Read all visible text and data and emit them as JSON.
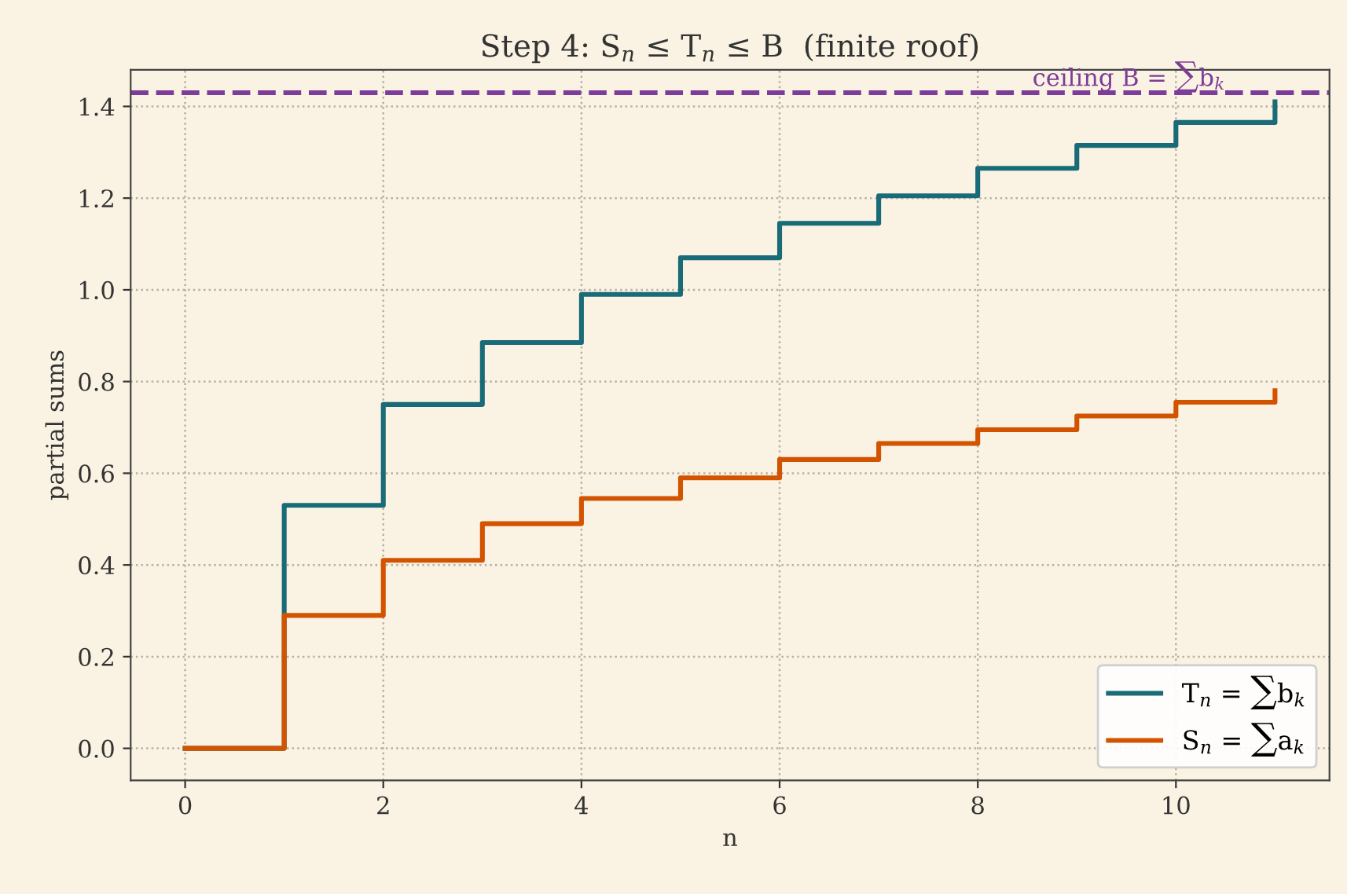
{
  "chart_data": {
    "type": "step",
    "title": "Step 4: S$_{n}$ ≤ T$_{n}$ ≤ B  (finite roof)",
    "xlabel": "n",
    "ylabel": "partial sums",
    "x": [
      0,
      1,
      2,
      3,
      4,
      5,
      6,
      7,
      8,
      9,
      10,
      11
    ],
    "series": [
      {
        "name": "T$_{n}$ = ∑b$_{k}$",
        "color": "#1a6b78",
        "values": [
          0,
          0.53,
          0.75,
          0.885,
          0.99,
          1.07,
          1.145,
          1.205,
          1.265,
          1.315,
          1.365,
          1.41
        ]
      },
      {
        "name": "S$_{n}$ = ∑a$_{k}$",
        "color": "#d35400",
        "values": [
          0,
          0.29,
          0.41,
          0.49,
          0.545,
          0.59,
          0.63,
          0.665,
          0.695,
          0.725,
          0.755,
          0.78
        ]
      }
    ],
    "ref_lines": [
      {
        "axis": "y",
        "value": 1.43,
        "label": "ceiling B = ∑b$_{k}$",
        "color": "#7d3c98",
        "line_style": "dashed"
      }
    ],
    "xlim": [
      -0.55,
      11.55
    ],
    "xticks": [
      0,
      2,
      4,
      6,
      8,
      10
    ],
    "ylim": [
      -0.07,
      1.48
    ],
    "yticks": [
      {
        "value": 0,
        "label": "0.0"
      },
      {
        "value": 0.2,
        "label": "0.2"
      },
      {
        "value": 0.4,
        "label": "0.4"
      },
      {
        "value": 0.6,
        "label": "0.6"
      },
      {
        "value": 0.8,
        "label": "0.8"
      },
      {
        "value": 1.0,
        "label": "1.0"
      },
      {
        "value": 1.2,
        "label": "1.2"
      },
      {
        "value": 1.4,
        "label": "1.4"
      }
    ],
    "grid": true,
    "legend": "bottom right",
    "line_style": "solid"
  }
}
